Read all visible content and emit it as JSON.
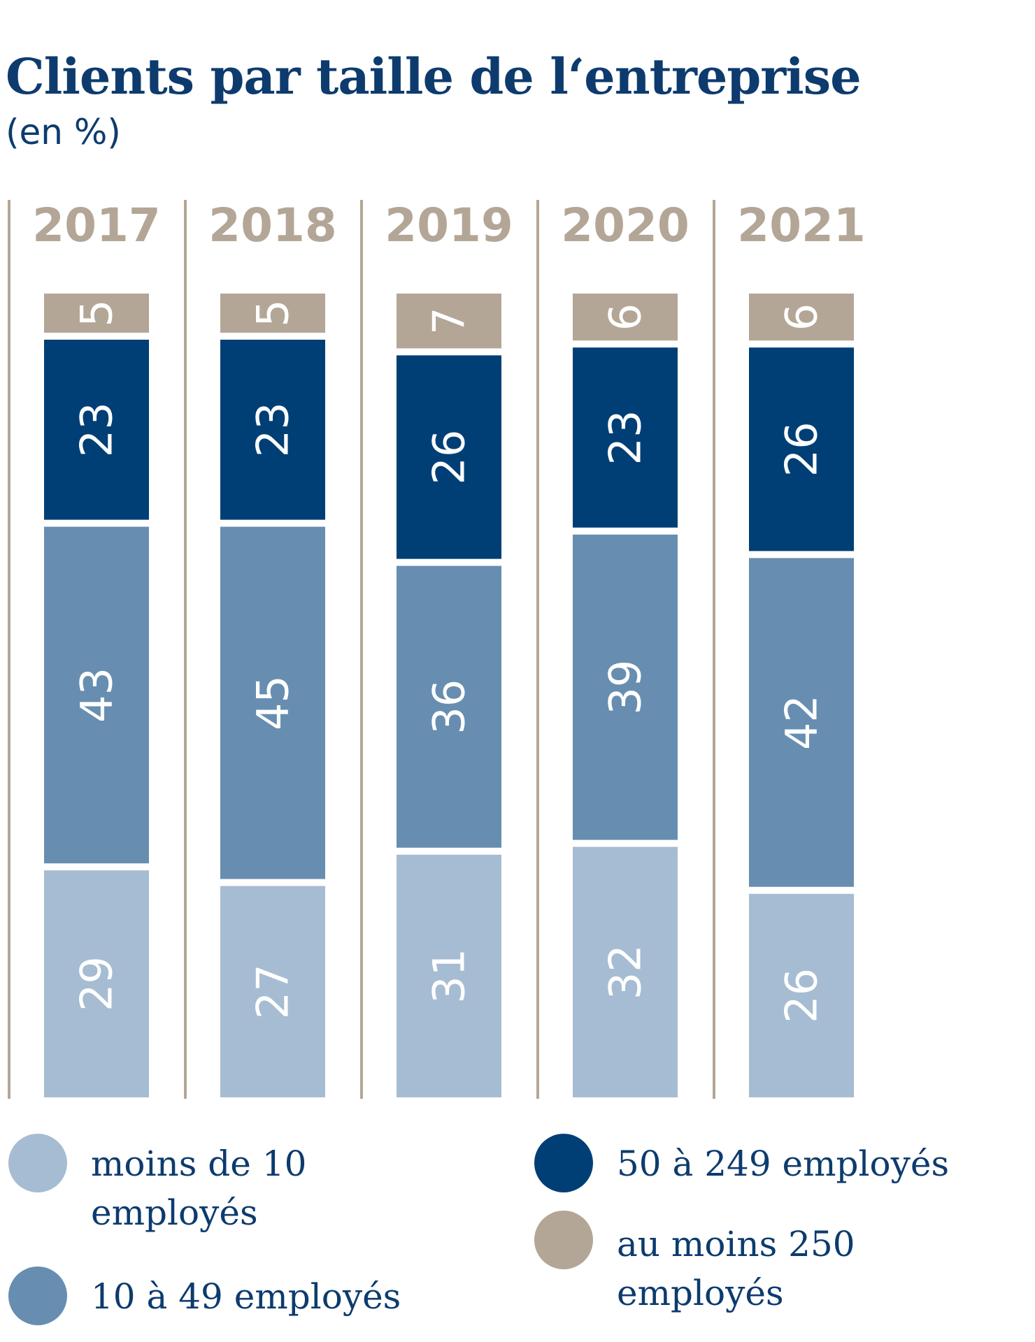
{
  "chart_data": {
    "type": "bar",
    "stacked": true,
    "title": "Clients par taille de l‘entreprise",
    "subtitle": "(en %)",
    "categories": [
      "2017",
      "2018",
      "2019",
      "2020",
      "2021"
    ],
    "series": [
      {
        "name": "moins de 10 employés",
        "color": "#a6bcd2",
        "values": [
          29,
          27,
          31,
          32,
          26
        ]
      },
      {
        "name": "10 à 49 employés",
        "color": "#678eb0",
        "values": [
          43,
          45,
          36,
          39,
          42
        ]
      },
      {
        "name": "50 à 249 employés",
        "color": "#003f75",
        "values": [
          23,
          23,
          26,
          23,
          26
        ]
      },
      {
        "name": "au moins 250 employés",
        "color": "#b4a696",
        "values": [
          5,
          5,
          7,
          6,
          6
        ]
      }
    ],
    "grid": false,
    "legend": "bottom"
  },
  "colors": {
    "title": "#0d3b6e",
    "year_label": "#b4a696",
    "divider": "#b4a696",
    "value_label": "#ffffff"
  }
}
